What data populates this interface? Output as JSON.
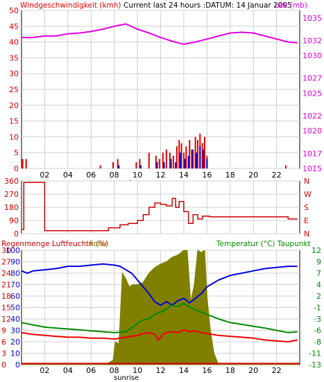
{
  "colors": {
    "wind": "#e00000",
    "gust": "#e00000",
    "wind_blue": "#0000cc",
    "pressure": "#e000e0",
    "direction": "#cc0000",
    "humidity": "#0000dd",
    "solar": "#808000",
    "temperature": "#008800",
    "dewpoint": "#ee0000",
    "rain": "#cc0000",
    "grid": "#d0d0d0",
    "frame": "#000000"
  },
  "chart_data": [
    {
      "type": "line",
      "title": "Windgeschwindigkeit (kmh)  Current last 24 hours :DATUM: 14 Januar 2005",
      "title_left": "Windgeschwindigkeit (kmh)",
      "title_center": "Current last 24 hours :DATUM: 14 Januar 2005",
      "title_right": "uck (mb)",
      "xticks": [
        "02",
        "04",
        "06",
        "08",
        "10",
        "12",
        "14",
        "16",
        "18",
        "20",
        "22"
      ],
      "xlim": [
        0,
        24
      ],
      "ylim_left": [
        0,
        50
      ],
      "yticks_left": [
        "0",
        "5",
        "10",
        "15",
        "20",
        "25",
        "30",
        "35",
        "40",
        "45",
        "50"
      ],
      "ylim_right": [
        1015,
        1036
      ],
      "yticks_right": [
        "1015",
        "1017",
        "1020",
        "1022",
        "1025",
        "1027",
        "1030",
        "1032",
        "1035"
      ],
      "series": [
        {
          "name": "Luftdruck",
          "axis": "right",
          "x": [
            0,
            1,
            2,
            3,
            4,
            5,
            6,
            7,
            8,
            9,
            10,
            11,
            12,
            13,
            14,
            15,
            16,
            17,
            18,
            19,
            20,
            21,
            22,
            23,
            23.8
          ],
          "values": [
            1032.4,
            1032.4,
            1032.6,
            1032.6,
            1032.9,
            1033.0,
            1033.2,
            1033.5,
            1033.9,
            1034.2,
            1033.5,
            1033.0,
            1032.4,
            1031.9,
            1031.5,
            1031.8,
            1032.2,
            1032.6,
            1033.0,
            1033.1,
            1033.0,
            1032.6,
            1032.2,
            1031.8,
            1031.7
          ]
        },
        {
          "name": "Windgeschwindigkeit",
          "axis": "left",
          "type": "bar",
          "x": [
            0.1,
            0.4,
            6.8,
            7.9,
            8.3,
            9.9,
            10.2,
            11.0,
            11.6,
            11.9,
            12.2,
            12.5,
            12.8,
            13.1,
            13.4,
            13.6,
            13.8,
            14.0,
            14.2,
            14.5,
            14.8,
            15.0,
            15.2,
            15.4,
            15.6,
            15.8,
            16.0,
            22.8
          ],
          "values": [
            3,
            3,
            1,
            2,
            3,
            2,
            3,
            5,
            4,
            3,
            5,
            6,
            5,
            4,
            7,
            9,
            8,
            5,
            7,
            9,
            6,
            10,
            9,
            11,
            8,
            10,
            4,
            1
          ]
        },
        {
          "name": "Windgeschwindigkeit (min)",
          "axis": "left",
          "type": "bar",
          "x": [
            8.4,
            10.3,
            11.7,
            12.3,
            12.9,
            13.3,
            13.7,
            14.1,
            14.4,
            14.7,
            15.1,
            15.4,
            15.7,
            16.0
          ],
          "values": [
            1,
            1,
            2,
            2,
            3,
            2,
            5,
            3,
            4,
            6,
            5,
            7,
            6,
            3
          ]
        }
      ]
    },
    {
      "type": "line",
      "title": "",
      "xlim": [
        0,
        24
      ],
      "ylim": [
        0,
        360
      ],
      "yticks_left": [
        "0",
        "90",
        "180",
        "270",
        "360"
      ],
      "yticks_right": [
        "N",
        "W",
        "S",
        "E",
        "N"
      ],
      "series": [
        {
          "name": "Windrichtung",
          "x": [
            0,
            0.2,
            1.9,
            2.0,
            6.8,
            7.5,
            8.5,
            9.2,
            10.0,
            10.5,
            11.0,
            11.5,
            12.0,
            12.5,
            13.0,
            13.3,
            13.6,
            14.0,
            14.4,
            14.8,
            15.2,
            15.6,
            16.2,
            18.0,
            20.0,
            22.0,
            23.0,
            23.8
          ],
          "values": [
            30,
            350,
            350,
            20,
            20,
            40,
            60,
            70,
            90,
            130,
            180,
            210,
            200,
            190,
            240,
            180,
            220,
            150,
            70,
            130,
            100,
            120,
            115,
            115,
            115,
            115,
            100,
            100
          ]
        }
      ]
    },
    {
      "type": "line",
      "title": "",
      "title_left": "Regenmenge Luftfeuchte (%)",
      "title_solar": "Solar",
      "title_right": "Temperatur (°C)  Taupunkt",
      "xticks": [
        "02",
        "04",
        "06",
        "08",
        "10",
        "12",
        "14",
        "16",
        "18",
        "20",
        "22"
      ],
      "xlim": [
        0,
        24
      ],
      "ylim_left": [
        0,
        100
      ],
      "yticks_left_rain": [
        "0",
        "3",
        "6",
        "9",
        "12",
        "15",
        "18",
        "21",
        "24",
        "27",
        "30"
      ],
      "yticks_left_hum": [
        "0",
        "10",
        "20",
        "30",
        "40",
        "50",
        "60",
        "70",
        "80",
        "90",
        "100"
      ],
      "ylim_right": [
        -13,
        12
      ],
      "yticks_right": [
        "-13",
        "-11",
        "-8",
        "-6",
        "-3",
        "-1",
        "2",
        "4",
        "7",
        "9",
        "12"
      ],
      "series": [
        {
          "name": "Luftfeuchte",
          "x": [
            0,
            0.5,
            1,
            2,
            3,
            4,
            5,
            6,
            7,
            8,
            8.5,
            9,
            9.5,
            10,
            10.5,
            11,
            11.5,
            12,
            12.5,
            13,
            13.5,
            14,
            14.5,
            15,
            15.5,
            16,
            17,
            18,
            19,
            20,
            21,
            22,
            23,
            23.8
          ],
          "values": [
            82,
            80,
            82,
            83,
            84,
            86,
            86,
            87,
            88,
            87,
            86,
            83,
            80,
            74,
            68,
            62,
            55,
            52,
            55,
            52,
            56,
            58,
            54,
            58,
            62,
            68,
            74,
            78,
            80,
            82,
            84,
            85,
            86,
            86
          ]
        },
        {
          "name": "Temperatur",
          "axis": "right",
          "x": [
            0,
            1,
            2,
            3,
            4,
            5,
            6,
            7,
            8,
            9,
            9.5,
            10,
            10.5,
            11,
            11.5,
            12,
            12.5,
            13,
            13.5,
            14,
            14.5,
            15,
            16,
            17,
            18,
            19,
            20,
            21,
            22,
            23,
            23.8
          ],
          "values": [
            -3.8,
            -4.3,
            -4.8,
            -5.0,
            -5.2,
            -5.4,
            -5.6,
            -5.8,
            -6.0,
            -5.8,
            -5.0,
            -4.0,
            -3.2,
            -3.0,
            -2.0,
            -1.5,
            -0.8,
            0.0,
            -0.3,
            0.4,
            -0.4,
            -1.0,
            -2.0,
            -3.0,
            -3.8,
            -4.2,
            -4.6,
            -5.0,
            -5.5,
            -6.0,
            -5.8
          ]
        },
        {
          "name": "Taupunkt",
          "axis": "right",
          "x": [
            0,
            1,
            2,
            3,
            4,
            5,
            6,
            7,
            8,
            9,
            10,
            10.5,
            11,
            11.5,
            11.8,
            12.2,
            12.5,
            13,
            13.5,
            14,
            14.5,
            15,
            15.5,
            16,
            17,
            18,
            19,
            20,
            21,
            22,
            23,
            23.8
          ],
          "values": [
            -6.0,
            -6.4,
            -6.6,
            -6.8,
            -7.0,
            -7.0,
            -7.2,
            -7.2,
            -7.4,
            -7.0,
            -6.6,
            -6.2,
            -6.0,
            -6.4,
            -7.6,
            -6.4,
            -6.0,
            -5.8,
            -6.0,
            -5.4,
            -5.8,
            -5.6,
            -6.0,
            -6.2,
            -6.6,
            -6.8,
            -7.0,
            -7.2,
            -7.6,
            -7.8,
            -8.0,
            -7.6
          ]
        },
        {
          "name": "Solar",
          "type": "area",
          "x": [
            0,
            7.0,
            7.6,
            7.9,
            8.1,
            8.4,
            8.7,
            9.0,
            9.3,
            9.6,
            10.0,
            10.5,
            11.0,
            11.5,
            12.0,
            12.5,
            13.0,
            13.5,
            14.0,
            14.3,
            14.6,
            14.9,
            15.2,
            15.5,
            15.8,
            16.0,
            16.3,
            16.6,
            17.0,
            24
          ],
          "values": [
            0,
            0,
            2,
            4,
            20,
            18,
            80,
            75,
            68,
            70,
            70,
            72,
            80,
            85,
            88,
            90,
            94,
            96,
            100,
            100,
            55,
            70,
            100,
            98,
            100,
            60,
            30,
            10,
            0,
            0
          ]
        },
        {
          "name": "Regenmenge",
          "x": [
            0,
            24
          ],
          "values": [
            1,
            1
          ]
        }
      ]
    }
  ],
  "sunrise_label": "sunrise"
}
